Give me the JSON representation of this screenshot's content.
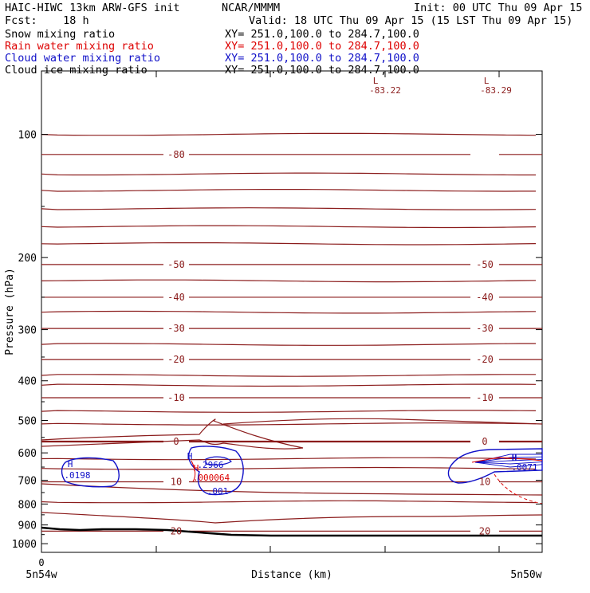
{
  "header": {
    "model": "HAIC-HIWC 13km ARW-GFS init",
    "org": "NCAR/MMMM",
    "init": "Init: 00 UTC Thu 09 Apr 15",
    "fcst": "Fcst:    18 h",
    "valid": "Valid: 18 UTC Thu 09 Apr 15 (15 LST Thu 09 Apr 15)"
  },
  "fields": [
    {
      "label": "Snow mixing ratio",
      "xy": "XY= 251.0,100.0 to 284.7,100.0",
      "color": "#000000"
    },
    {
      "label": "Rain water mixing ratio",
      "xy": "XY= 251.0,100.0 to 284.7,100.0",
      "color": "#dd0000"
    },
    {
      "label": "Cloud water mixing ratio",
      "xy": "XY= 251.0,100.0 to 284.7,100.0",
      "color": "#1010c8"
    },
    {
      "label": "Cloud ice mixing ratio",
      "xy": "XY= 251.0,100.0 to 284.7,100.0",
      "color": "#000000"
    }
  ],
  "colors": {
    "temperature": "#8b1c1c",
    "rain": "#dd0000",
    "cloud_water": "#1010c8",
    "terrain": "#000000"
  },
  "chart_data": {
    "type": "line",
    "title": "",
    "xlabel": "Distance (km)",
    "ylabel": "Pressure (hPa)",
    "y_scale": "log",
    "ylim": [
      1050,
      70
    ],
    "yticks": [
      100,
      200,
      300,
      400,
      500,
      600,
      700,
      800,
      900,
      1000
    ],
    "xtick_labels": [
      "0"
    ],
    "x_endpoints": [
      "5n54w",
      "5n50w"
    ],
    "temperature_contours": [
      {
        "label": "-80",
        "pressure": 112
      },
      {
        "label": "-50",
        "pressure": 208
      },
      {
        "label": "-40",
        "pressure": 250
      },
      {
        "label": "-30",
        "pressure": 298
      },
      {
        "label": "-20",
        "pressure": 355
      },
      {
        "label": "-10",
        "pressure": 440
      },
      {
        "label": "0",
        "pressure": 563
      },
      {
        "label": "10",
        "pressure": 706
      },
      {
        "label": "20",
        "pressure": 932
      }
    ],
    "temperature_minima": [
      {
        "marker": "L",
        "value": "-83.22"
      },
      {
        "marker": "L",
        "value": "-83.29"
      }
    ],
    "cloud_water_maxima": [
      {
        "marker": "H",
        "value": ".0198"
      },
      {
        "marker": "H",
        "value": ".2966"
      },
      {
        "marker": "H",
        "value": ".001"
      },
      {
        "marker": "H",
        "value": ".0071"
      }
    ],
    "rain_maxima": [
      {
        "marker": "H",
        "value": ".000064"
      }
    ],
    "grid": false
  }
}
